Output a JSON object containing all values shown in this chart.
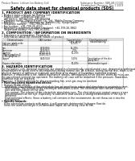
{
  "bg_color": "#ffffff",
  "header_left": "Product Name: Lithium Ion Battery Cell",
  "header_right_line1": "Substance Number: SBR-LIB-00010",
  "header_right_line2": "Established / Revision: Dec.7.2009",
  "title": "Safety data sheet for chemical products (SDS)",
  "section1_title": "1. PRODUCT AND COMPANY IDENTIFICATION",
  "section1_lines": [
    "• Product name: Lithium Ion Battery Cell",
    "• Product code: Cylindrical-type cell",
    "   SBT-B6500, SBT-B6500L, SBT-B6500A",
    "• Company name:  Sanyo Electric Co., Ltd., Mobile Energy Company",
    "• Address:        2001 Kamimaki-an, Sumoto-City, Hyogo, Japan",
    "• Telephone number:   +81-799-26-4111",
    "• Fax number:  +81-799-26-4120",
    "• Emergency telephone number (daytime): +81-799-26-3862",
    "   (Night and holiday) +81-799-26-4101"
  ],
  "section2_title": "2. COMPOSITION / INFORMATION ON INGREDIENTS",
  "section2_lines": [
    "• Substance or preparation: Preparation",
    "• Information about the chemical nature of product:"
  ],
  "table_headers": [
    "Component",
    "CAS number",
    "Concentration /\nConcentration range",
    "Classification and\nhazard labeling"
  ],
  "table_col2_header": "Chemical name",
  "table_rows": [
    [
      "Lithium cobalt oxide\n(LiMnxCoxNiO2)",
      "-",
      "30-50%",
      "-"
    ],
    [
      "Iron",
      "7439-89-6",
      "15-25%",
      "-"
    ],
    [
      "Aluminum",
      "7429-90-5",
      "2-5%",
      "-"
    ],
    [
      "Graphite\n(Mixed graphite-1)\n(Li-Mn-graphite-1)",
      "77592-43-5\n17440-44-9",
      "10-20%",
      "-"
    ],
    [
      "Copper",
      "7440-50-8",
      "5-10%",
      "Sensitization of the skin\ngroup No.2"
    ],
    [
      "Organic electrolyte",
      "-",
      "10-20%",
      "Inflammable liquid"
    ]
  ],
  "section3_title": "3. HAZARDS IDENTIFICATION",
  "section3_para1": "For the battery cell, chemical materials are stored in a hermetically sealed metal case, designed to withstand\ntemperatures at which electro-decomposition during normal use. As a result, during normal use, there is no\nphysical danger of ignition or explosion and there is no danger of hazardous materials leakage.",
  "section3_para2": "However, if exposed to a fire, added mechanical shocks, decomposed, either electric shorts by miss-use,\nthe gas release vent can be operated. The battery cell case will be breached if the pressure, hazardous\nmaterials may be released.",
  "section3_para3": "Moreover, if heated strongly by the surrounding fire, emit gas may be emitted.",
  "section3_bullet1": "• Most important hazard and effects:",
  "section3_human": "Human health effects:",
  "section3_inhalation": "Inhalation: The release of the electrolyte has an anesthesia action and stimulates to respiratory tract.",
  "section3_skin": "Skin contact: The release of the electrolyte stimulates a skin. The electrolyte skin contact causes a\nsore and stimulation on the skin.",
  "section3_eye": "Eye contact: The release of the electrolyte stimulates eyes. The electrolyte eye contact causes a sore\nand stimulation on the eye. Especially, a substance that causes a strong inflammation of the eye is\ncontained.",
  "section3_env": "Environmental effects: Since a battery cell remains in the environment, do not throw out it into the\nenvironment.",
  "section3_bullet2": "• Specific hazards:",
  "section3_specific1": "If the electrolyte contacts with water, it will generate detrimental hydrogen fluoride.",
  "section3_specific2": "Since the used electrolyte is inflammable liquid, do not bring close to fire."
}
